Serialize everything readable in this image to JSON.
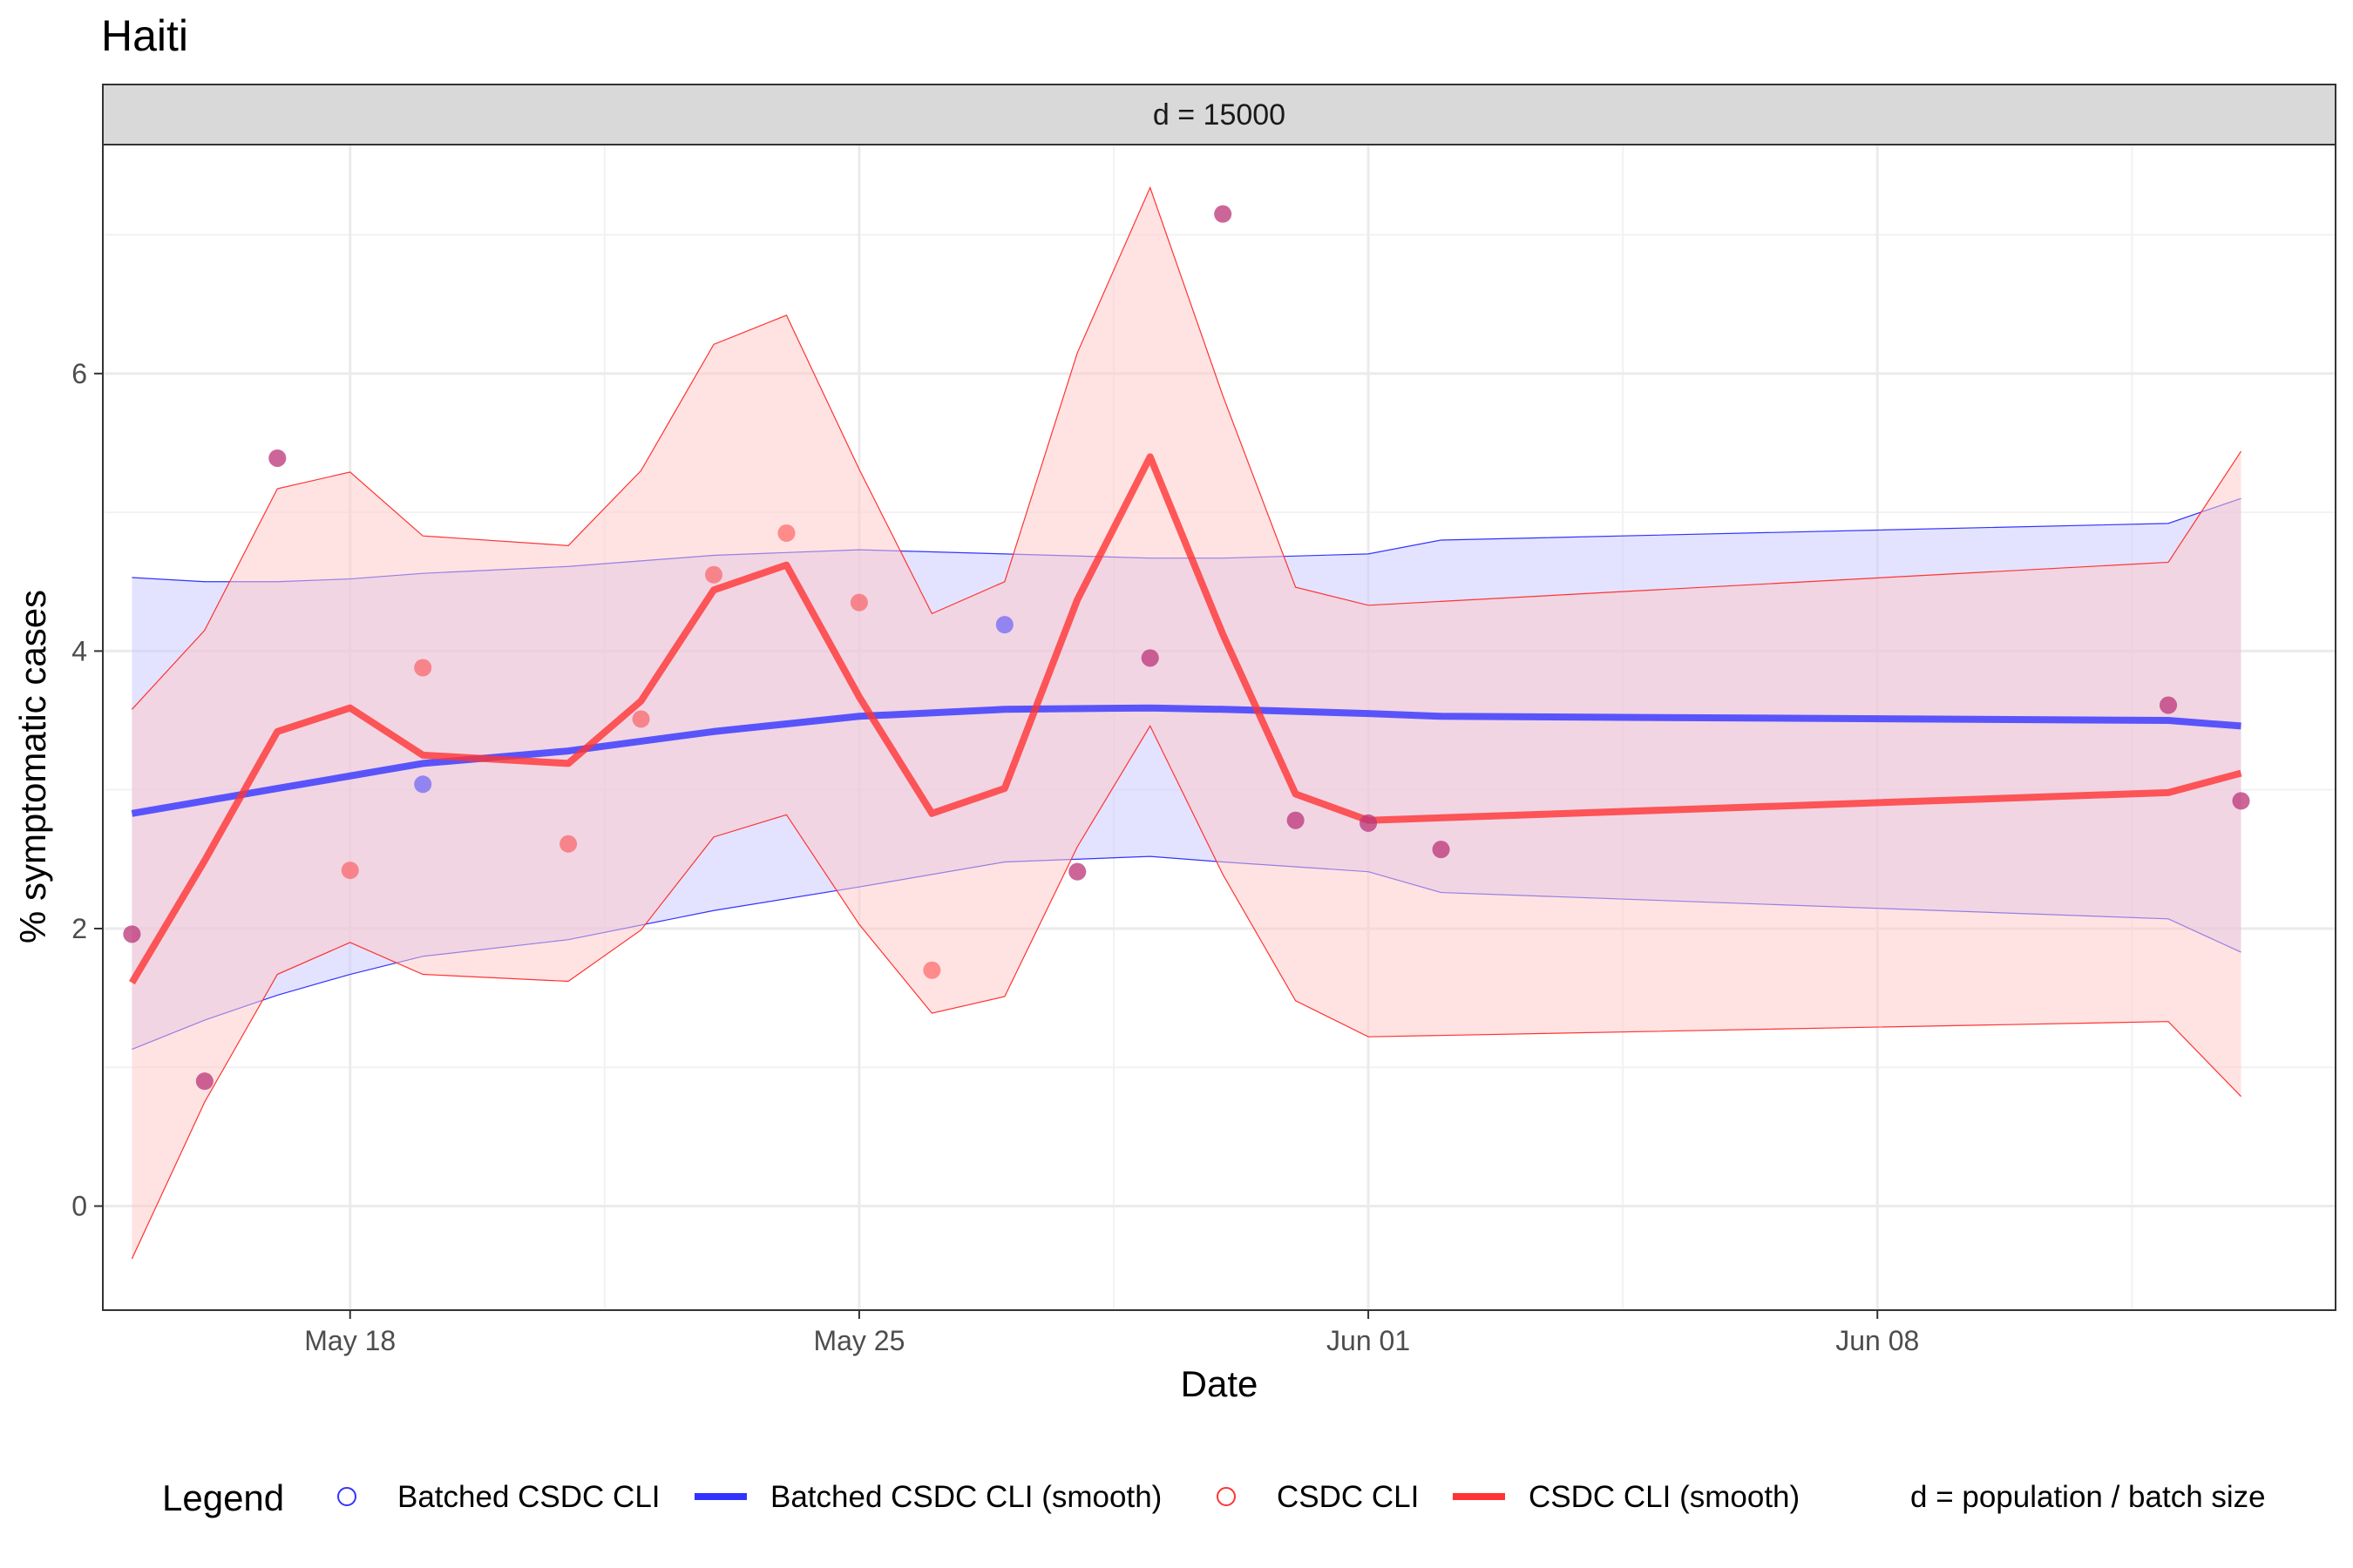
{
  "chart_data": {
    "type": "line",
    "title": "Haiti",
    "facet_label": "d = 15000",
    "xlabel": "Date",
    "ylabel": "% symptomatic cases",
    "x_ticks": [
      "May 18",
      "May 25",
      "Jun 01",
      "Jun 08"
    ],
    "y_ticks": [
      "0",
      "2",
      "4",
      "6"
    ],
    "xlim": [
      "2020-05-14.6",
      "2020-06-14.3"
    ],
    "ylim": [
      -0.75,
      7.65
    ],
    "grid": true,
    "legend_position": "bottom",
    "legend": {
      "title": "Legend",
      "entries": [
        {
          "label": "Batched CSDC CLI",
          "kind": "point",
          "color": "#3333ff"
        },
        {
          "label": "Batched CSDC CLI (smooth)",
          "kind": "line",
          "color": "#3333ff"
        },
        {
          "label": "CSDC CLI",
          "kind": "point",
          "color": "#ff3333"
        },
        {
          "label": "CSDC CLI (smooth)",
          "kind": "line",
          "color": "#ff3333"
        }
      ],
      "note": "d = population / batch size"
    },
    "colors": {
      "batched": "#3333ff",
      "batched_fill": "#c8c8ff",
      "csdc": "#ff3333",
      "csdc_fill": "#ffc8c8",
      "strip_bg": "#d9d9d9"
    },
    "series": [
      {
        "name": "Batched CSDC CLI",
        "kind": "points",
        "color": "#3333ff",
        "points": [
          {
            "x": "2020-05-15",
            "y": 1.96
          },
          {
            "x": "2020-05-16",
            "y": 0.9
          },
          {
            "x": "2020-05-17",
            "y": 5.39
          },
          {
            "x": "2020-05-19",
            "y": 3.04
          },
          {
            "x": "2020-05-27",
            "y": 4.19
          },
          {
            "x": "2020-05-28",
            "y": 2.41
          },
          {
            "x": "2020-05-29",
            "y": 3.95
          },
          {
            "x": "2020-05-30",
            "y": 7.15
          },
          {
            "x": "2020-05-31",
            "y": 2.78
          },
          {
            "x": "2020-06-01",
            "y": 2.76
          },
          {
            "x": "2020-06-02",
            "y": 2.57
          },
          {
            "x": "2020-06-12",
            "y": 3.61
          },
          {
            "x": "2020-06-13",
            "y": 2.92
          }
        ]
      },
      {
        "name": "CSDC CLI",
        "kind": "points",
        "color": "#ff3333",
        "points": [
          {
            "x": "2020-05-15",
            "y": 1.96
          },
          {
            "x": "2020-05-16",
            "y": 0.9
          },
          {
            "x": "2020-05-17",
            "y": 5.39
          },
          {
            "x": "2020-05-18",
            "y": 2.42
          },
          {
            "x": "2020-05-19",
            "y": 3.88
          },
          {
            "x": "2020-05-21",
            "y": 2.61
          },
          {
            "x": "2020-05-22",
            "y": 3.51
          },
          {
            "x": "2020-05-23",
            "y": 4.55
          },
          {
            "x": "2020-05-24",
            "y": 4.85
          },
          {
            "x": "2020-05-25",
            "y": 4.35
          },
          {
            "x": "2020-05-26",
            "y": 1.7
          },
          {
            "x": "2020-05-28",
            "y": 2.41
          },
          {
            "x": "2020-05-29",
            "y": 3.95
          },
          {
            "x": "2020-05-30",
            "y": 7.15
          },
          {
            "x": "2020-05-31",
            "y": 2.78
          },
          {
            "x": "2020-06-01",
            "y": 2.76
          },
          {
            "x": "2020-06-02",
            "y": 2.57
          },
          {
            "x": "2020-06-12",
            "y": 3.61
          },
          {
            "x": "2020-06-13",
            "y": 2.92
          }
        ]
      },
      {
        "name": "Batched CSDC CLI (smooth)",
        "kind": "smooth",
        "color": "#3333ff",
        "points": [
          {
            "x": "2020-05-15",
            "y": 2.83,
            "lo": 1.13,
            "hi": 4.53
          },
          {
            "x": "2020-05-16",
            "y": 2.92,
            "lo": 1.34,
            "hi": 4.5
          },
          {
            "x": "2020-05-17",
            "y": 3.01,
            "lo": 1.52,
            "hi": 4.5
          },
          {
            "x": "2020-05-18",
            "y": 3.1,
            "lo": 1.67,
            "hi": 4.52
          },
          {
            "x": "2020-05-19",
            "y": 3.19,
            "lo": 1.8,
            "hi": 4.56
          },
          {
            "x": "2020-05-21",
            "y": 3.28,
            "lo": 1.92,
            "hi": 4.61
          },
          {
            "x": "2020-05-23",
            "y": 3.42,
            "lo": 2.13,
            "hi": 4.69
          },
          {
            "x": "2020-05-25",
            "y": 3.53,
            "lo": 2.3,
            "hi": 4.73
          },
          {
            "x": "2020-05-27",
            "y": 3.58,
            "lo": 2.48,
            "hi": 4.7
          },
          {
            "x": "2020-05-29",
            "y": 3.59,
            "lo": 2.52,
            "hi": 4.67
          },
          {
            "x": "2020-05-30",
            "y": 3.58,
            "lo": 2.48,
            "hi": 4.67
          },
          {
            "x": "2020-06-01",
            "y": 3.55,
            "lo": 2.41,
            "hi": 4.7
          },
          {
            "x": "2020-06-02",
            "y": 3.53,
            "lo": 2.26,
            "hi": 4.8
          },
          {
            "x": "2020-06-12",
            "y": 3.5,
            "lo": 2.07,
            "hi": 4.92
          },
          {
            "x": "2020-06-13",
            "y": 3.46,
            "lo": 1.83,
            "hi": 5.1
          }
        ]
      },
      {
        "name": "CSDC CLI (smooth)",
        "kind": "smooth",
        "color": "#ff3333",
        "points": [
          {
            "x": "2020-05-15",
            "y": 1.61,
            "lo": -0.38,
            "hi": 3.58
          },
          {
            "x": "2020-05-16",
            "y": 2.49,
            "lo": 0.75,
            "hi": 4.15
          },
          {
            "x": "2020-05-17",
            "y": 3.42,
            "lo": 1.67,
            "hi": 5.17
          },
          {
            "x": "2020-05-18",
            "y": 3.59,
            "lo": 1.9,
            "hi": 5.29
          },
          {
            "x": "2020-05-19",
            "y": 3.25,
            "lo": 1.67,
            "hi": 4.83
          },
          {
            "x": "2020-05-21",
            "y": 3.19,
            "lo": 1.62,
            "hi": 4.76
          },
          {
            "x": "2020-05-22",
            "y": 3.64,
            "lo": 1.99,
            "hi": 5.3
          },
          {
            "x": "2020-05-23",
            "y": 4.44,
            "lo": 2.66,
            "hi": 6.21
          },
          {
            "x": "2020-05-24",
            "y": 4.62,
            "lo": 2.82,
            "hi": 6.42
          },
          {
            "x": "2020-05-25",
            "y": 3.67,
            "lo": 2.03,
            "hi": 5.31
          },
          {
            "x": "2020-05-26",
            "y": 2.83,
            "lo": 1.39,
            "hi": 4.27
          },
          {
            "x": "2020-05-27",
            "y": 3.01,
            "lo": 1.51,
            "hi": 4.5
          },
          {
            "x": "2020-05-28",
            "y": 4.37,
            "lo": 2.59,
            "hi": 6.15
          },
          {
            "x": "2020-05-29",
            "y": 5.4,
            "lo": 3.46,
            "hi": 7.34
          },
          {
            "x": "2020-05-30",
            "y": 4.12,
            "lo": 2.39,
            "hi": 5.84
          },
          {
            "x": "2020-05-31",
            "y": 2.97,
            "lo": 1.48,
            "hi": 4.46
          },
          {
            "x": "2020-06-01",
            "y": 2.78,
            "lo": 1.22,
            "hi": 4.33
          },
          {
            "x": "2020-06-12",
            "y": 2.98,
            "lo": 1.33,
            "hi": 4.64
          },
          {
            "x": "2020-06-13",
            "y": 3.12,
            "lo": 0.79,
            "hi": 5.44
          }
        ]
      }
    ]
  }
}
